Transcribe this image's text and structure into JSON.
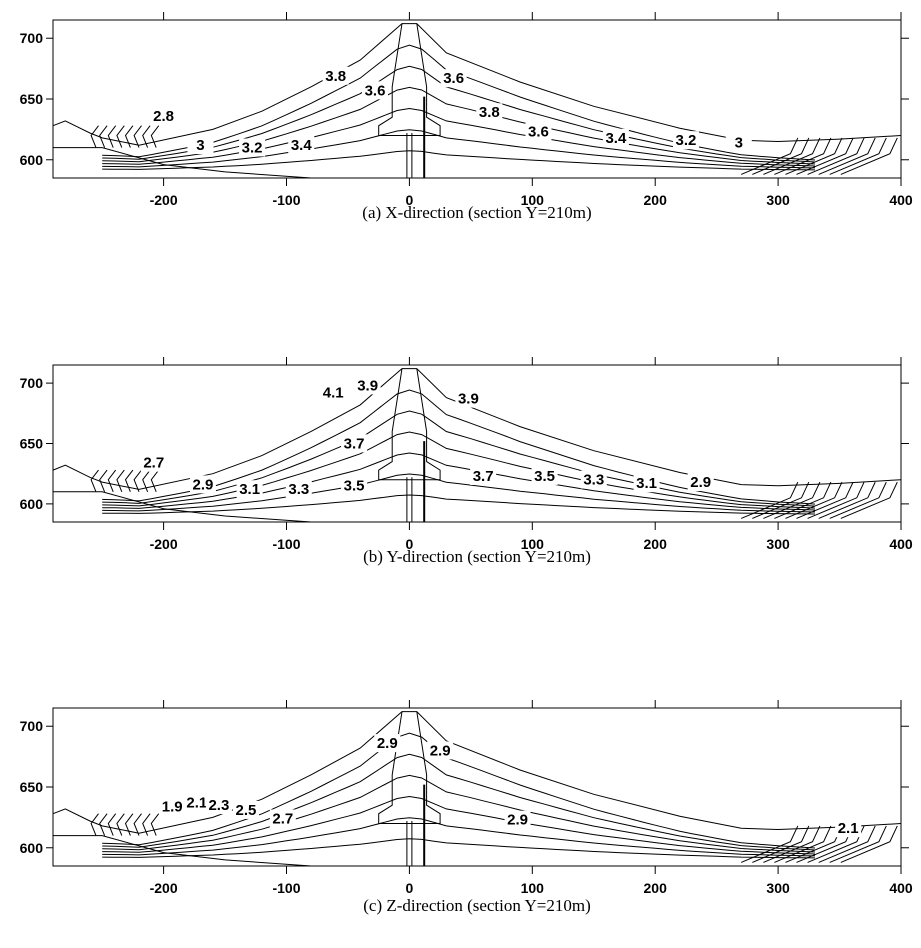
{
  "chart_data": [
    {
      "type": "contour",
      "caption": "(a) X-direction (section Y=210m)",
      "xlim": [
        -290,
        400
      ],
      "ylim": [
        585,
        715
      ],
      "xticks": [
        -200,
        -100,
        0,
        100,
        200,
        300,
        400
      ],
      "yticks": [
        600,
        650,
        700
      ],
      "contour_labels": [
        {
          "text": "3.8",
          "x": -60,
          "y": 665
        },
        {
          "text": "3.6",
          "x": -28,
          "y": 653
        },
        {
          "text": "3.6",
          "x": 36,
          "y": 663
        },
        {
          "text": "3.8",
          "x": 65,
          "y": 635
        },
        {
          "text": "2.8",
          "x": -200,
          "y": 632
        },
        {
          "text": "3",
          "x": -170,
          "y": 608
        },
        {
          "text": "3.2",
          "x": -128,
          "y": 606
        },
        {
          "text": "3.4",
          "x": -88,
          "y": 608
        },
        {
          "text": "3.6",
          "x": 105,
          "y": 619
        },
        {
          "text": "3.4",
          "x": 168,
          "y": 614
        },
        {
          "text": "3.2",
          "x": 225,
          "y": 612
        },
        {
          "text": "3",
          "x": 268,
          "y": 610
        }
      ]
    },
    {
      "type": "contour",
      "caption": "(b) Y-direction (section Y=210m)",
      "xlim": [
        -290,
        400
      ],
      "ylim": [
        585,
        715
      ],
      "xticks": [
        -200,
        -100,
        0,
        100,
        200,
        300,
        400
      ],
      "yticks": [
        600,
        650,
        700
      ],
      "contour_labels": [
        {
          "text": "4.1",
          "x": -62,
          "y": 688
        },
        {
          "text": "3.9",
          "x": -34,
          "y": 694
        },
        {
          "text": "3.9",
          "x": 48,
          "y": 683
        },
        {
          "text": "3.7",
          "x": -45,
          "y": 646
        },
        {
          "text": "2.7",
          "x": -208,
          "y": 630
        },
        {
          "text": "2.9",
          "x": -168,
          "y": 612
        },
        {
          "text": "3.1",
          "x": -130,
          "y": 608
        },
        {
          "text": "3.3",
          "x": -90,
          "y": 608
        },
        {
          "text": "3.5",
          "x": -45,
          "y": 611
        },
        {
          "text": "3.7",
          "x": 60,
          "y": 619
        },
        {
          "text": "3.5",
          "x": 110,
          "y": 619
        },
        {
          "text": "3.3",
          "x": 150,
          "y": 616
        },
        {
          "text": "3.1",
          "x": 193,
          "y": 613
        },
        {
          "text": "2.9",
          "x": 237,
          "y": 614
        }
      ]
    },
    {
      "type": "contour",
      "caption": "(c) Z-direction (section Y=210m)",
      "xlim": [
        -290,
        400
      ],
      "ylim": [
        585,
        715
      ],
      "xticks": [
        -200,
        -100,
        0,
        100,
        200,
        300,
        400
      ],
      "yticks": [
        600,
        650,
        700
      ],
      "contour_labels": [
        {
          "text": "2.9",
          "x": -18,
          "y": 682
        },
        {
          "text": "2.9",
          "x": 25,
          "y": 676
        },
        {
          "text": "1.9",
          "x": -193,
          "y": 630
        },
        {
          "text": "2.1",
          "x": -173,
          "y": 633
        },
        {
          "text": "2.3",
          "x": -155,
          "y": 631
        },
        {
          "text": "2.5",
          "x": -133,
          "y": 627
        },
        {
          "text": "2.7",
          "x": -103,
          "y": 620
        },
        {
          "text": "2.9",
          "x": 88,
          "y": 619
        },
        {
          "text": "2.1",
          "x": 357,
          "y": 612
        }
      ]
    }
  ]
}
